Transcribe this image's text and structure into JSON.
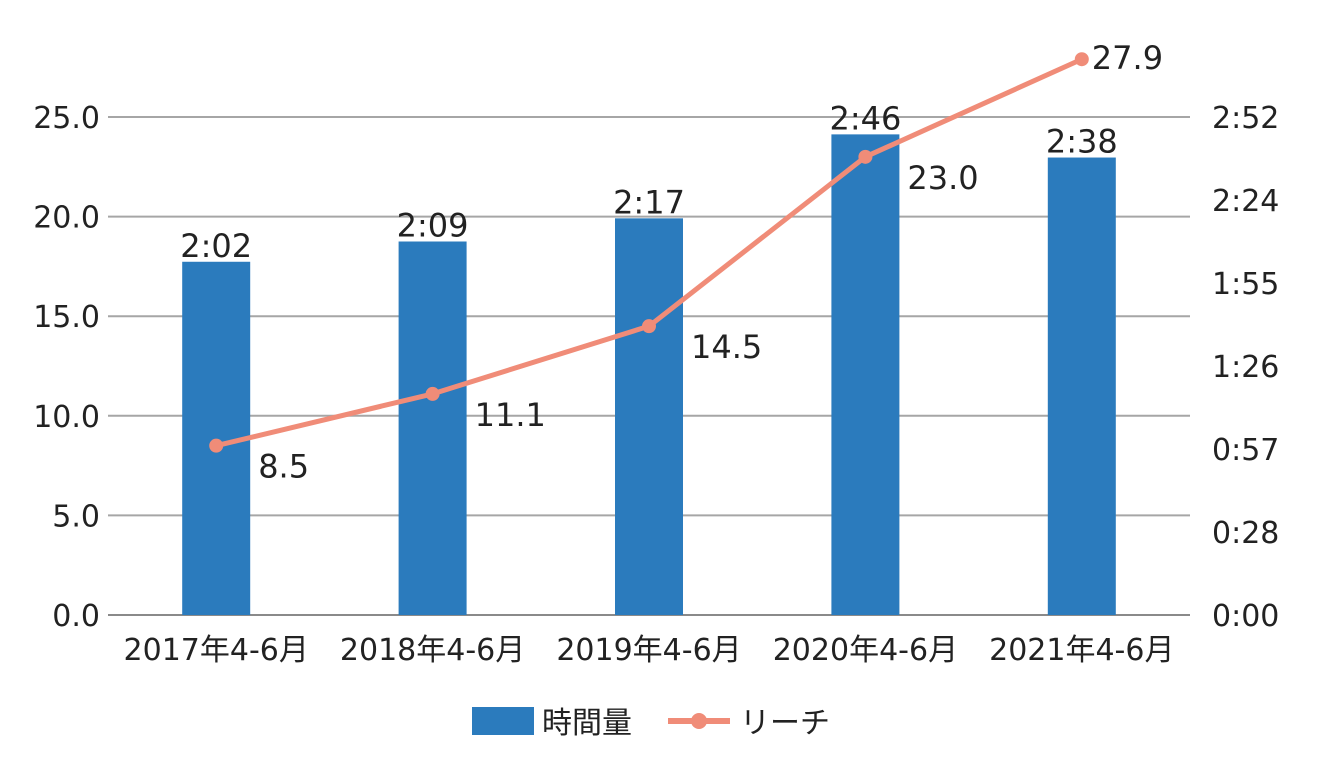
{
  "chart_data": {
    "type": "bar",
    "categories": [
      "2017年4-6月",
      "2018年4-6月",
      "2019年4-6月",
      "2020年4-6月",
      "2021年4-6月"
    ],
    "series": [
      {
        "name": "時間量",
        "type": "bar",
        "axis": "right",
        "values_minutes": [
          122,
          129,
          137,
          166,
          158
        ],
        "labels": [
          "2:02",
          "2:09",
          "2:17",
          "2:46",
          "2:38"
        ],
        "color": "#2b7bbd"
      },
      {
        "name": "リーチ",
        "type": "line",
        "axis": "left",
        "values": [
          8.5,
          11.1,
          14.5,
          23.0,
          27.9
        ],
        "labels": [
          "8.5",
          "11.1",
          "14.5",
          "23.0",
          "27.9"
        ],
        "color": "#f08c78"
      }
    ],
    "y_left": {
      "ylim": [
        0,
        25
      ],
      "ticks": [
        "0.0",
        "5.0",
        "10.0",
        "15.0",
        "20.0",
        "25.0"
      ]
    },
    "y_right": {
      "ylim_minutes": [
        0,
        172
      ],
      "ticks": [
        "0:00",
        "0:28",
        "0:57",
        "1:26",
        "1:55",
        "2:24",
        "2:52"
      ]
    },
    "grid": true,
    "legend": "bottom-center"
  }
}
